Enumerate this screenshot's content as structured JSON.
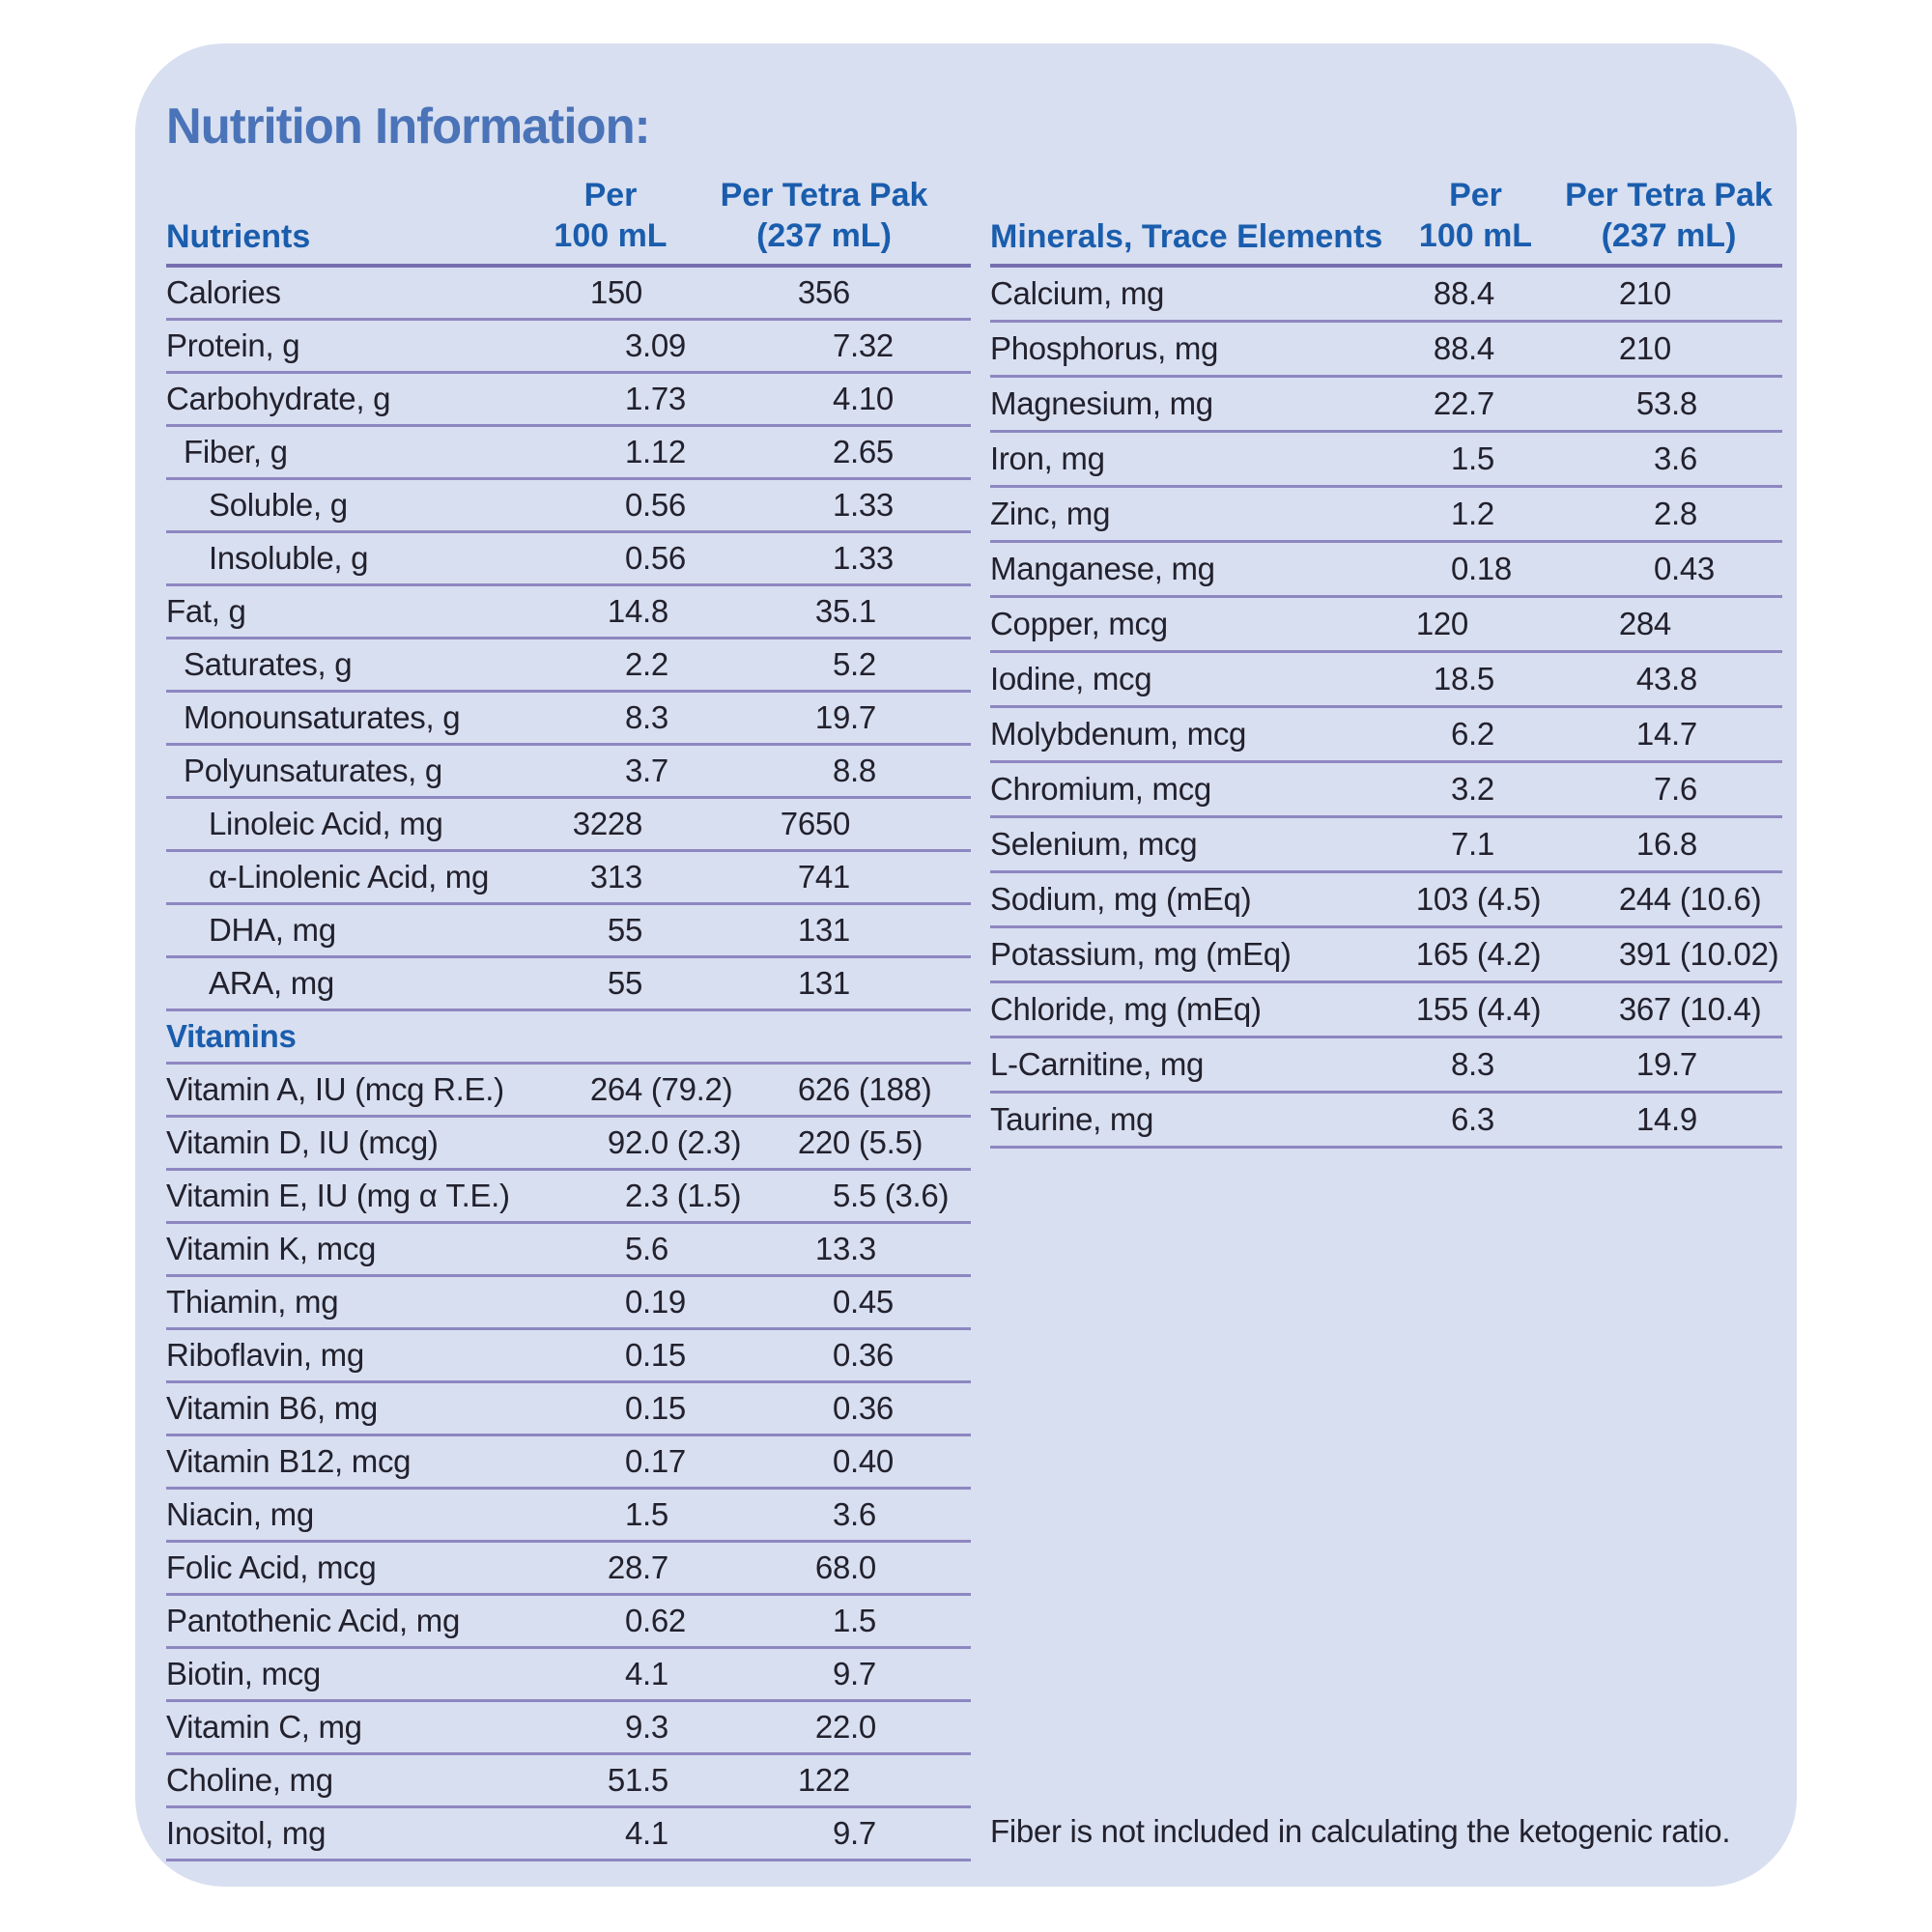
{
  "title": "Nutrition Information:",
  "footnote": "Fiber is not included in calculating the ketogenic ratio.",
  "colors": {
    "card_bg": "#d8dff0",
    "title_blue": "#4a73b8",
    "header_blue": "#1a5dad",
    "body_text": "#22212d",
    "row_line": "#8d87c1",
    "header_line": "#756fb0",
    "page_bg": "#ffffff"
  },
  "left_table": {
    "headers": {
      "col1": "Nutrients",
      "per_top": "Per",
      "per_bottom": "100 mL",
      "tetra_top": "Per Tetra Pak",
      "tetra_bottom": "(237 mL)"
    },
    "rows": [
      {
        "label": "Calories",
        "indent": 0,
        "per_100ml": "150",
        "per_tetra_pak": "356"
      },
      {
        "label": "Protein, g",
        "indent": 0,
        "per_100ml": "3.09",
        "per_tetra_pak": "7.32"
      },
      {
        "label": "Carbohydrate, g",
        "indent": 0,
        "per_100ml": "1.73",
        "per_tetra_pak": "4.10"
      },
      {
        "label": "Fiber, g",
        "indent": 1,
        "per_100ml": "1.12",
        "per_tetra_pak": "2.65"
      },
      {
        "label": "Soluble, g",
        "indent": 2,
        "per_100ml": "0.56",
        "per_tetra_pak": "1.33"
      },
      {
        "label": "Insoluble, g",
        "indent": 2,
        "per_100ml": "0.56",
        "per_tetra_pak": "1.33"
      },
      {
        "label": "Fat, g",
        "indent": 0,
        "per_100ml": "14.8",
        "per_tetra_pak": "35.1"
      },
      {
        "label": "Saturates, g",
        "indent": 1,
        "per_100ml": "2.2",
        "per_tetra_pak": "5.2"
      },
      {
        "label": "Monounsaturates, g",
        "indent": 1,
        "per_100ml": "8.3",
        "per_tetra_pak": "19.7"
      },
      {
        "label": "Polyunsaturates, g",
        "indent": 1,
        "per_100ml": "3.7",
        "per_tetra_pak": "8.8"
      },
      {
        "label": "Linoleic Acid, mg",
        "indent": 2,
        "per_100ml": "3228",
        "per_tetra_pak": "7650"
      },
      {
        "label": "α-Linolenic Acid, mg",
        "indent": 2,
        "per_100ml": "313",
        "per_tetra_pak": "741"
      },
      {
        "label": "DHA, mg",
        "indent": 2,
        "per_100ml": "55",
        "per_tetra_pak": "131"
      },
      {
        "label": "ARA, mg",
        "indent": 2,
        "per_100ml": "55",
        "per_tetra_pak": "131"
      },
      {
        "section": "Vitamins"
      },
      {
        "label": "Vitamin A, IU (mcg R.E.)",
        "indent": 0,
        "per_100ml": "264 (79.2)",
        "per_tetra_pak": "626 (188)"
      },
      {
        "label": "Vitamin D, IU (mcg)",
        "indent": 0,
        "per_100ml": "92.0 (2.3)",
        "per_tetra_pak": "220 (5.5)"
      },
      {
        "label": "Vitamin E, IU (mg α T.E.)",
        "indent": 0,
        "per_100ml": "2.3 (1.5)",
        "per_tetra_pak": "5.5 (3.6)"
      },
      {
        "label": "Vitamin K, mcg",
        "indent": 0,
        "per_100ml": "5.6",
        "per_tetra_pak": "13.3"
      },
      {
        "label": "Thiamin, mg",
        "indent": 0,
        "per_100ml": "0.19",
        "per_tetra_pak": "0.45"
      },
      {
        "label": "Riboflavin, mg",
        "indent": 0,
        "per_100ml": "0.15",
        "per_tetra_pak": "0.36"
      },
      {
        "label": "Vitamin B6, mg",
        "indent": 0,
        "per_100ml": "0.15",
        "per_tetra_pak": "0.36"
      },
      {
        "label": "Vitamin B12, mcg",
        "indent": 0,
        "per_100ml": "0.17",
        "per_tetra_pak": "0.40"
      },
      {
        "label": "Niacin, mg",
        "indent": 0,
        "per_100ml": "1.5",
        "per_tetra_pak": "3.6"
      },
      {
        "label": "Folic Acid, mcg",
        "indent": 0,
        "per_100ml": "28.7",
        "per_tetra_pak": "68.0"
      },
      {
        "label": "Pantothenic Acid, mg",
        "indent": 0,
        "per_100ml": "0.62",
        "per_tetra_pak": "1.5"
      },
      {
        "label": "Biotin, mcg",
        "indent": 0,
        "per_100ml": "4.1",
        "per_tetra_pak": "9.7"
      },
      {
        "label": "Vitamin C, mg",
        "indent": 0,
        "per_100ml": "9.3",
        "per_tetra_pak": "22.0"
      },
      {
        "label": "Choline, mg",
        "indent": 0,
        "per_100ml": "51.5",
        "per_tetra_pak": "122"
      },
      {
        "label": "Inositol, mg",
        "indent": 0,
        "per_100ml": "4.1",
        "per_tetra_pak": "9.7"
      }
    ]
  },
  "right_table": {
    "headers": {
      "col1": "Minerals, Trace Elements",
      "per_top": "Per",
      "per_bottom": "100 mL",
      "tetra_top": "Per Tetra Pak",
      "tetra_bottom": "(237 mL)"
    },
    "rows": [
      {
        "label": "Calcium, mg",
        "indent": 0,
        "per_100ml": "88.4",
        "per_tetra_pak": "210"
      },
      {
        "label": "Phosphorus, mg",
        "indent": 0,
        "per_100ml": "88.4",
        "per_tetra_pak": "210"
      },
      {
        "label": "Magnesium, mg",
        "indent": 0,
        "per_100ml": "22.7",
        "per_tetra_pak": "53.8"
      },
      {
        "label": "Iron, mg",
        "indent": 0,
        "per_100ml": "1.5",
        "per_tetra_pak": "3.6"
      },
      {
        "label": "Zinc, mg",
        "indent": 0,
        "per_100ml": "1.2",
        "per_tetra_pak": "2.8"
      },
      {
        "label": "Manganese, mg",
        "indent": 0,
        "per_100ml": "0.18",
        "per_tetra_pak": "0.43"
      },
      {
        "label": "Copper, mcg",
        "indent": 0,
        "per_100ml": "120",
        "per_tetra_pak": "284"
      },
      {
        "label": "Iodine, mcg",
        "indent": 0,
        "per_100ml": "18.5",
        "per_tetra_pak": "43.8"
      },
      {
        "label": "Molybdenum, mcg",
        "indent": 0,
        "per_100ml": "6.2",
        "per_tetra_pak": "14.7"
      },
      {
        "label": "Chromium, mcg",
        "indent": 0,
        "per_100ml": "3.2",
        "per_tetra_pak": "7.6"
      },
      {
        "label": "Selenium, mcg",
        "indent": 0,
        "per_100ml": "7.1",
        "per_tetra_pak": "16.8"
      },
      {
        "label": "Sodium, mg (mEq)",
        "indent": 0,
        "per_100ml": "103 (4.5)",
        "per_tetra_pak": "244 (10.6)"
      },
      {
        "label": "Potassium, mg (mEq)",
        "indent": 0,
        "per_100ml": "165 (4.2)",
        "per_tetra_pak": "391 (10.02)"
      },
      {
        "label": "Chloride, mg (mEq)",
        "indent": 0,
        "per_100ml": "155 (4.4)",
        "per_tetra_pak": "367 (10.4)"
      },
      {
        "label": "L-Carnitine, mg",
        "indent": 0,
        "per_100ml": "8.3",
        "per_tetra_pak": "19.7"
      },
      {
        "label": "Taurine, mg",
        "indent": 0,
        "per_100ml": "6.3",
        "per_tetra_pak": "14.9"
      }
    ]
  }
}
